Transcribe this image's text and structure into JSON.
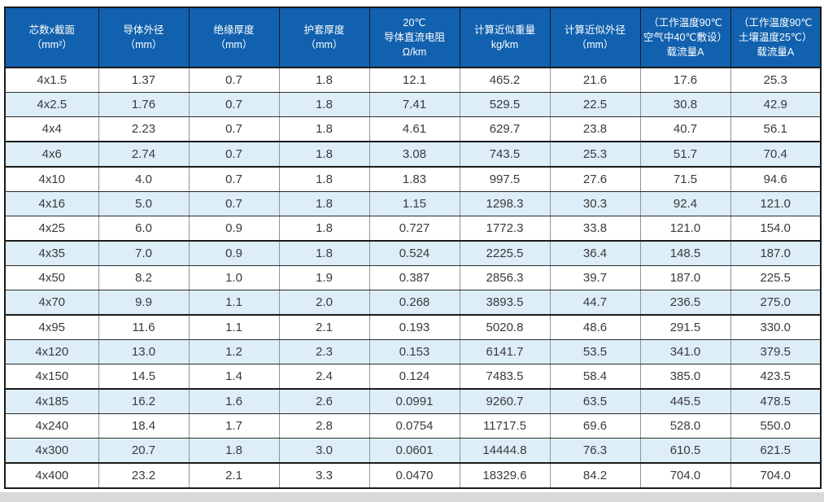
{
  "colors": {
    "header_bg": "#1161ae",
    "header_text": "#ffffff",
    "row_alt_bg": "#ddeef8",
    "border_dark": "#1a1a1a",
    "border_row": "#2b2b2b",
    "border_gray": "#8f9499",
    "cell_text": "#3a3a3a",
    "strip_bg": "#d9d9d9"
  },
  "table": {
    "headers": [
      [
        "芯数x截面",
        "（mm²）"
      ],
      [
        "导体外径",
        "（mm）"
      ],
      [
        "绝缘厚度",
        "（mm）"
      ],
      [
        "护套厚度",
        "（mm）"
      ],
      [
        "20℃",
        "导体直流电阻",
        "Ω/km"
      ],
      [
        "计算近似重量",
        "kg/km"
      ],
      [
        "计算近似外径",
        "（mm）"
      ],
      [
        "（工作温度90℃",
        "空气中40℃敷设）",
        "载流量A"
      ],
      [
        "（工作温度90℃",
        "土壤温度25℃）",
        "载流量A"
      ]
    ],
    "rows": [
      [
        "4x1.5",
        "1.37",
        "0.7",
        "1.8",
        "12.1",
        "465.2",
        "21.6",
        "17.6",
        "25.3"
      ],
      [
        "4x2.5",
        "1.76",
        "0.7",
        "1.8",
        "7.41",
        "529.5",
        "22.5",
        "30.8",
        "42.9"
      ],
      [
        "4x4",
        "2.23",
        "0.7",
        "1.8",
        "4.61",
        "629.7",
        "23.8",
        "40.7",
        "56.1"
      ],
      [
        "4x6",
        "2.74",
        "0.7",
        "1.8",
        "3.08",
        "743.5",
        "25.3",
        "51.7",
        "70.4"
      ],
      [
        "4x10",
        "4.0",
        "0.7",
        "1.8",
        "1.83",
        "997.5",
        "27.6",
        "71.5",
        "94.6"
      ],
      [
        "4x16",
        "5.0",
        "0.7",
        "1.8",
        "1.15",
        "1298.3",
        "30.3",
        "92.4",
        "121.0"
      ],
      [
        "4x25",
        "6.0",
        "0.9",
        "1.8",
        "0.727",
        "1772.3",
        "33.8",
        "121.0",
        "154.0"
      ],
      [
        "4x35",
        "7.0",
        "0.9",
        "1.8",
        "0.524",
        "2225.5",
        "36.4",
        "148.5",
        "187.0"
      ],
      [
        "4x50",
        "8.2",
        "1.0",
        "1.9",
        "0.387",
        "2856.3",
        "39.7",
        "187.0",
        "225.5"
      ],
      [
        "4x70",
        "9.9",
        "1.1",
        "2.0",
        "0.268",
        "3893.5",
        "44.7",
        "236.5",
        "275.0"
      ],
      [
        "4x95",
        "11.6",
        "1.1",
        "2.1",
        "0.193",
        "5020.8",
        "48.6",
        "291.5",
        "330.0"
      ],
      [
        "4x120",
        "13.0",
        "1.2",
        "2.3",
        "0.153",
        "6141.7",
        "53.5",
        "341.0",
        "379.5"
      ],
      [
        "4x150",
        "14.5",
        "1.4",
        "2.4",
        "0.124",
        "7483.5",
        "58.4",
        "385.0",
        "423.5"
      ],
      [
        "4x185",
        "16.2",
        "1.6",
        "2.6",
        "0.0991",
        "9260.7",
        "63.5",
        "445.5",
        "478.5"
      ],
      [
        "4x240",
        "18.4",
        "1.7",
        "2.8",
        "0.0754",
        "11717.5",
        "69.6",
        "528.0",
        "550.0"
      ],
      [
        "4x300",
        "20.7",
        "1.8",
        "3.0",
        "0.0601",
        "14444.8",
        "76.3",
        "610.5",
        "621.5"
      ],
      [
        "4x400",
        "23.2",
        "2.1",
        "3.3",
        "0.0470",
        "18329.6",
        "84.2",
        "704.0",
        "704.0"
      ]
    ]
  }
}
